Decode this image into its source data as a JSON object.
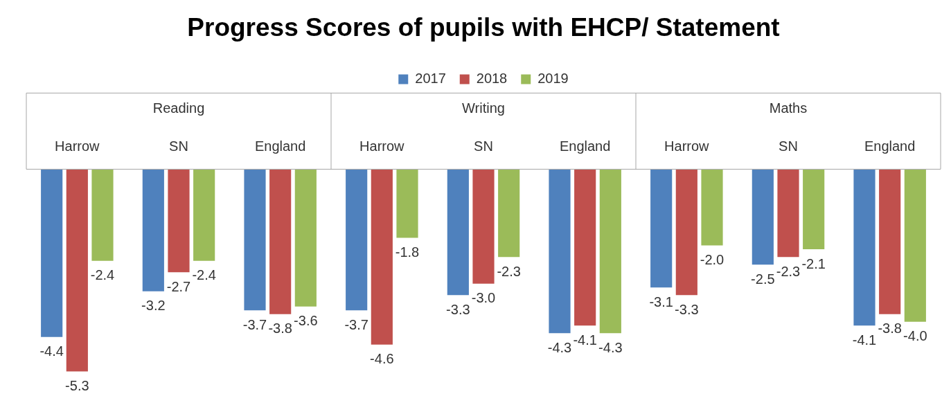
{
  "chart_data": {
    "type": "bar",
    "title": "Progress Scores of pupils with EHCP/ Statement",
    "categories": [
      "Harrow",
      "SN",
      "England",
      "Harrow",
      "SN",
      "England",
      "Harrow",
      "SN",
      "England"
    ],
    "annotations": [
      "Reading",
      "Writing",
      "Maths"
    ],
    "legend": "top",
    "grid": false,
    "series": [
      {
        "name": "2017",
        "color": "#4f81bd",
        "values": [
          -4.4,
          -3.2,
          -3.7,
          -3.7,
          -3.3,
          -4.3,
          -3.1,
          -2.5,
          -4.1
        ],
        "value_labels": [
          "-4.4",
          "-3.2",
          "-3.7",
          "-3.7",
          "-3.3",
          "-4.3",
          "-3.1",
          "-2.5",
          "-4.1"
        ]
      },
      {
        "name": "2018",
        "color": "#c0504d",
        "values": [
          -5.3,
          -2.7,
          -3.8,
          -4.6,
          -3.0,
          -4.1,
          -3.3,
          -2.3,
          -3.8
        ],
        "value_labels": [
          "-5.3",
          "-2.7",
          "-3.8",
          "-4.6",
          "-3.0",
          "-4.1",
          "-3.3",
          "-2.3",
          "-3.8"
        ]
      },
      {
        "name": "2019",
        "color": "#9bbb59",
        "values": [
          -2.4,
          -2.4,
          -3.6,
          -1.8,
          -2.3,
          -4.3,
          -2.0,
          -2.1,
          -4.0
        ],
        "value_labels": [
          "-2.4",
          "-2.4",
          "-3.6",
          "-1.8",
          "-2.3",
          "-4.3",
          "-2.0",
          "-2.1",
          "-4.0"
        ]
      }
    ]
  }
}
